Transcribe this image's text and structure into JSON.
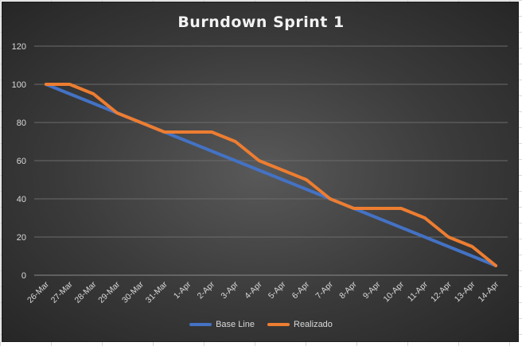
{
  "chart_data": {
    "type": "line",
    "title": "Burndown Sprint 1",
    "xlabel": "",
    "ylabel": "",
    "ylim": [
      0,
      120
    ],
    "yticks": [
      "0",
      "20",
      "40",
      "60",
      "80",
      "100",
      "120"
    ],
    "grid": true,
    "legend": "bottom",
    "categories": [
      "26-Mar",
      "27-Mar",
      "28-Mar",
      "29-Mar",
      "30-Mar",
      "31-Mar",
      "1-Apr",
      "2-Apr",
      "3-Apr",
      "4-Apr",
      "5-Apr",
      "6-Apr",
      "7-Apr",
      "8-Apr",
      "9-Apr",
      "10-Apr",
      "11-Apr",
      "12-Apr",
      "13-Apr",
      "14-Apr"
    ],
    "series": [
      {
        "name": "Base Line",
        "color": "#4472c4",
        "values": [
          100,
          95,
          90,
          85,
          80,
          75,
          70,
          65,
          60,
          55,
          50,
          45,
          40,
          35,
          30,
          25,
          20,
          15,
          10,
          5
        ]
      },
      {
        "name": "Realizado",
        "color": "#ed7d31",
        "values": [
          100,
          100,
          95,
          85,
          80,
          75,
          75,
          75,
          70,
          60,
          55,
          50,
          40,
          35,
          35,
          35,
          30,
          20,
          15,
          5
        ]
      }
    ]
  }
}
